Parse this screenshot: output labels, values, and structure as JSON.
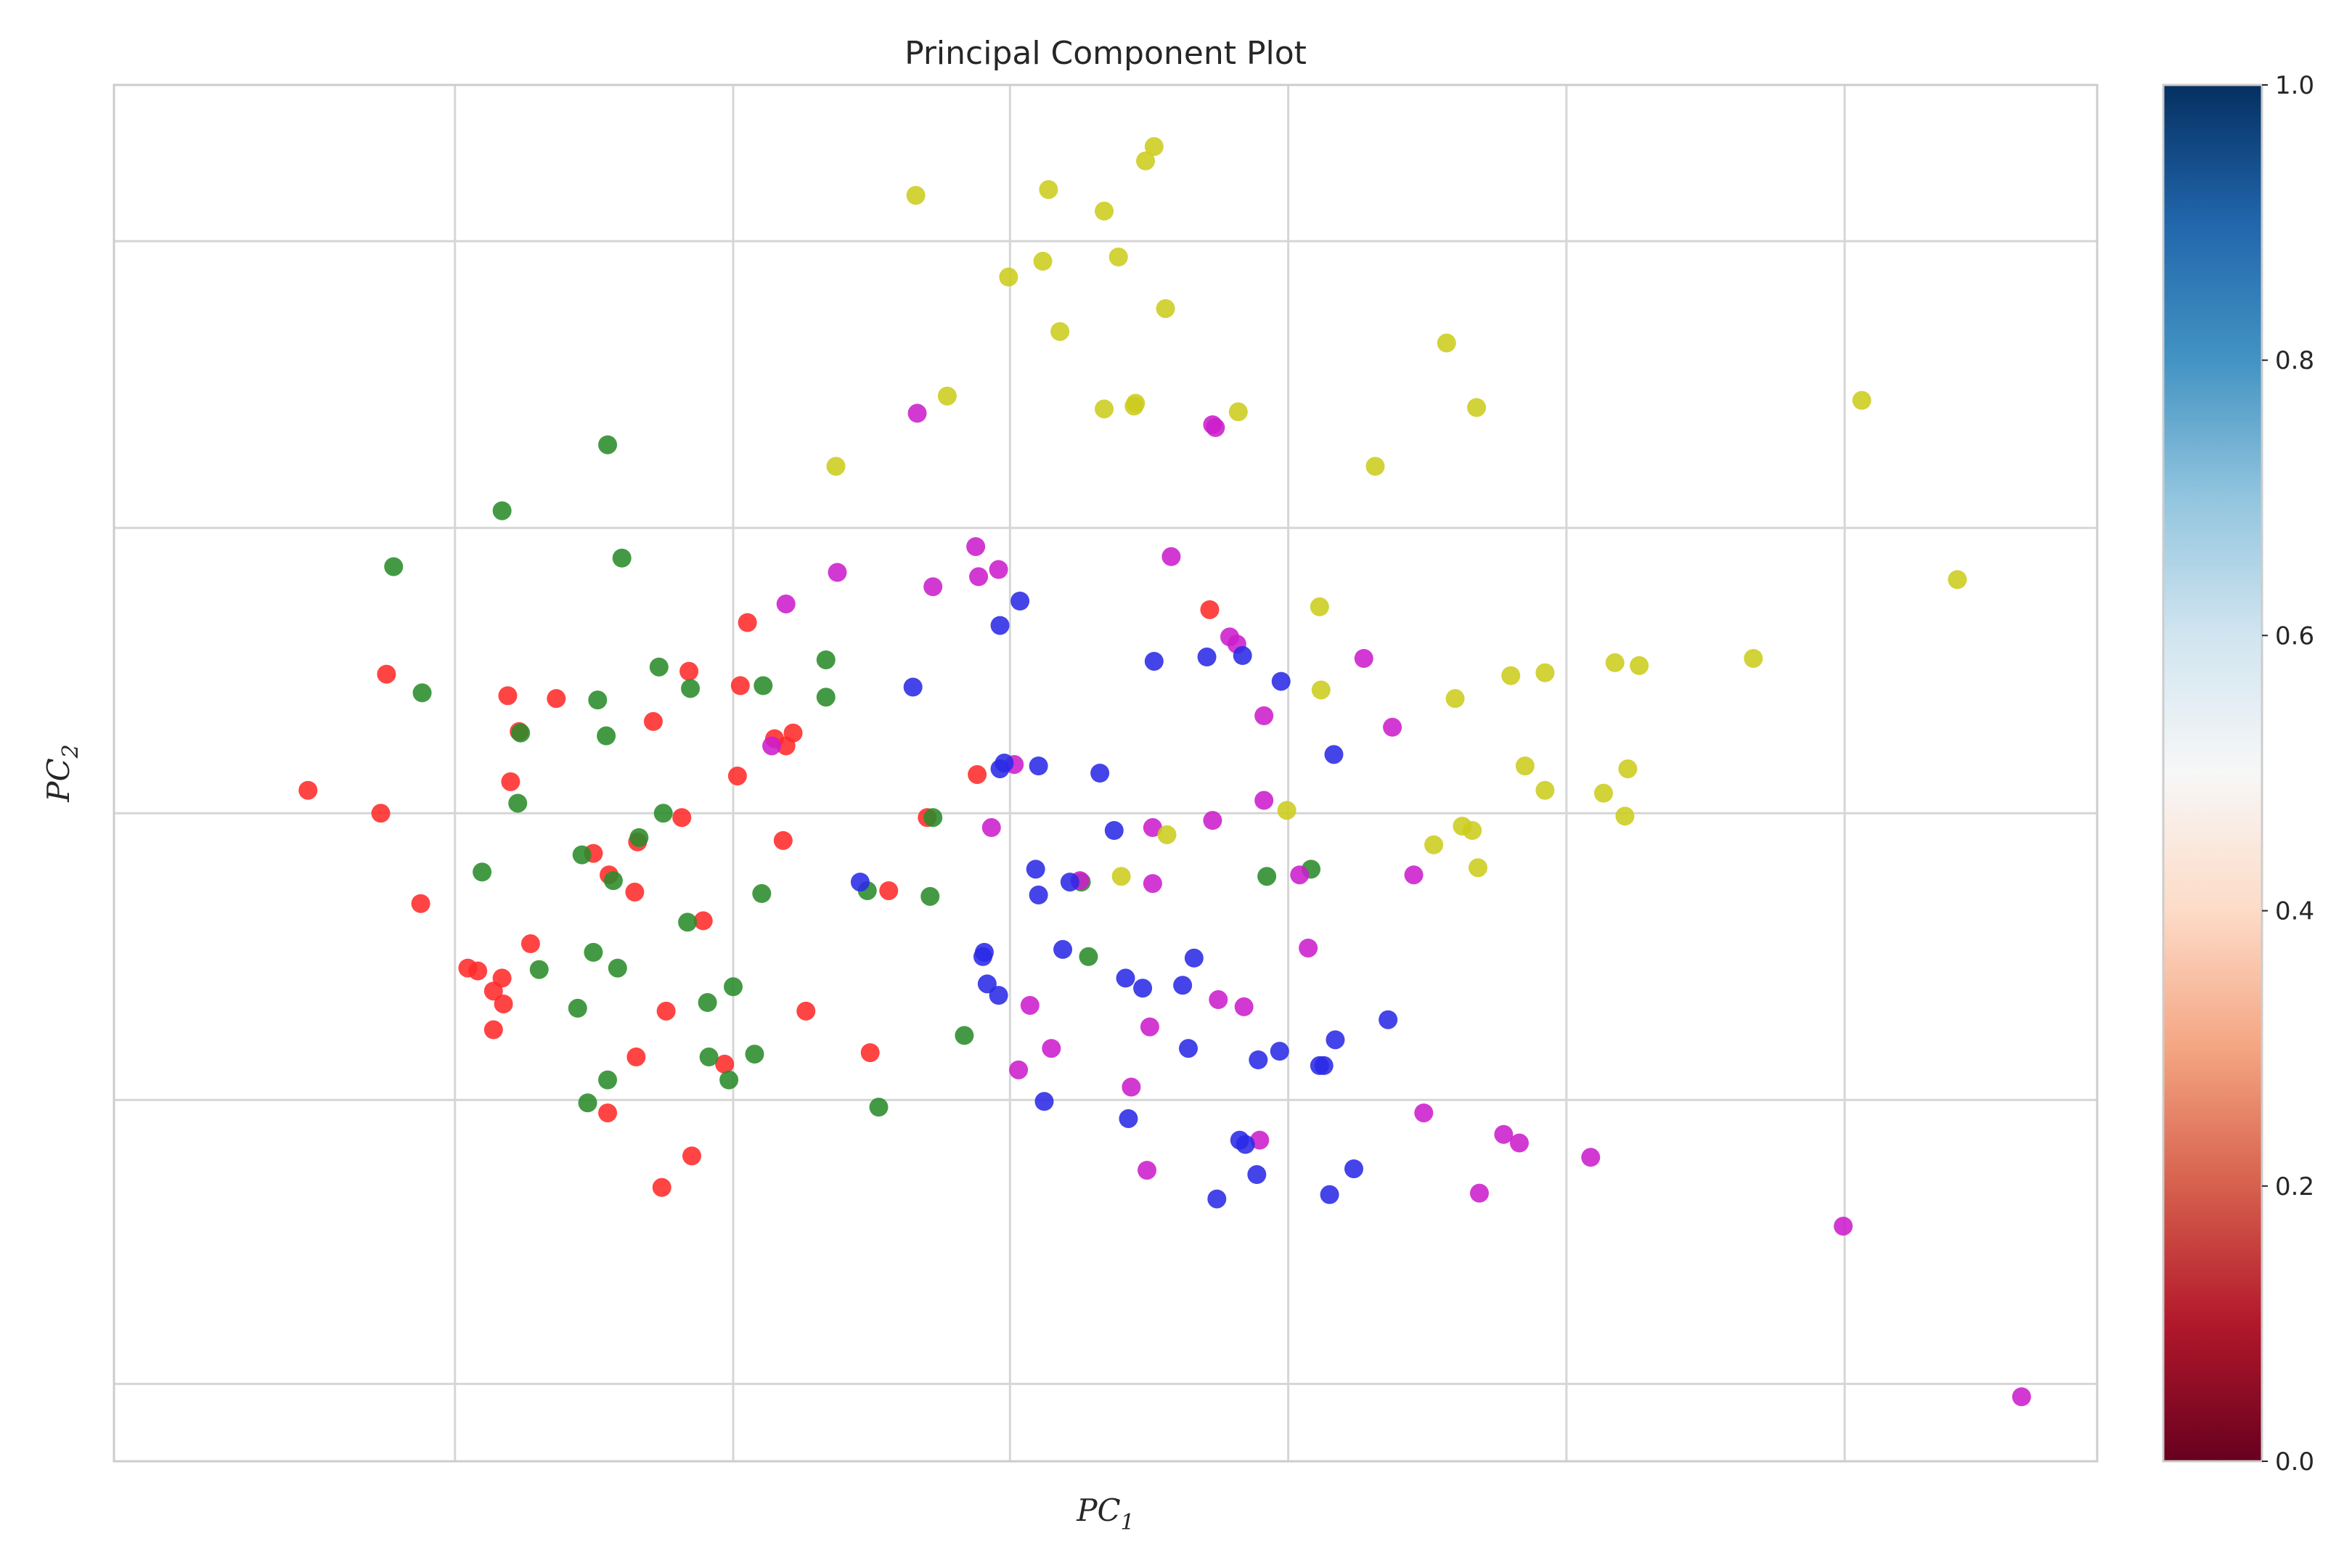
{
  "chart_data": {
    "type": "scatter",
    "title": "Principal Component Plot",
    "xlabel": "PC",
    "xlabel_sub": "1",
    "ylabel": "PC",
    "ylabel_sub": "2",
    "xlim": [
      0,
      1390
    ],
    "ylim": [
      0,
      960
    ],
    "grid": true,
    "x_ticks": [
      239,
      434,
      628,
      823,
      1018,
      1213
    ],
    "y_ticks": [
      54,
      252,
      452,
      651,
      851
    ],
    "colorbar": {
      "cmap": "RdBu",
      "range": [
        0,
        1
      ],
      "ticks": [
        "0.0",
        "0.2",
        "0.4",
        "0.6",
        "0.8",
        "1.0"
      ],
      "tick_values": [
        0,
        0.2,
        0.4,
        0.6,
        0.8,
        1.0
      ],
      "stops": [
        "#67001f",
        "#b2182b",
        "#d6604d",
        "#f4a582",
        "#fddbc7",
        "#f7f7f7",
        "#d1e5f0",
        "#92c5de",
        "#4393c3",
        "#2166ac",
        "#053061"
      ]
    },
    "series": [
      {
        "color": "#ff2a2a",
        "points": [
          [
            136,
            468
          ],
          [
            187,
            452
          ],
          [
            191,
            549
          ],
          [
            215,
            389
          ],
          [
            248,
            344
          ],
          [
            255,
            342
          ],
          [
            266,
            328
          ],
          [
            266,
            301
          ],
          [
            272,
            337
          ],
          [
            273,
            319
          ],
          [
            276,
            534
          ],
          [
            278,
            474
          ],
          [
            284,
            509
          ],
          [
            292,
            361
          ],
          [
            310,
            532
          ],
          [
            336,
            424
          ],
          [
            346,
            243
          ],
          [
            347,
            409
          ],
          [
            365,
            397
          ],
          [
            366,
            282
          ],
          [
            367,
            432
          ],
          [
            378,
            516
          ],
          [
            384,
            191
          ],
          [
            387,
            314
          ],
          [
            398,
            449
          ],
          [
            403,
            551
          ],
          [
            405,
            213
          ],
          [
            413,
            377
          ],
          [
            428,
            277
          ],
          [
            437,
            478
          ],
          [
            439,
            541
          ],
          [
            444,
            585
          ],
          [
            463,
            504
          ],
          [
            469,
            433
          ],
          [
            471,
            499
          ],
          [
            476,
            508
          ],
          [
            485,
            314
          ],
          [
            530,
            285
          ],
          [
            543,
            398
          ],
          [
            570,
            449
          ],
          [
            605,
            479
          ],
          [
            768,
            594
          ]
        ]
      },
      {
        "color": "#2a8c2a",
        "points": [
          [
            196,
            624
          ],
          [
            216,
            536
          ],
          [
            258,
            411
          ],
          [
            272,
            663
          ],
          [
            283,
            459
          ],
          [
            285,
            508
          ],
          [
            298,
            343
          ],
          [
            325,
            316
          ],
          [
            328,
            423
          ],
          [
            332,
            250
          ],
          [
            336,
            355
          ],
          [
            339,
            531
          ],
          [
            345,
            506
          ],
          [
            346,
            266
          ],
          [
            346,
            709
          ],
          [
            350,
            405
          ],
          [
            353,
            344
          ],
          [
            356,
            630
          ],
          [
            368,
            435
          ],
          [
            382,
            554
          ],
          [
            385,
            452
          ],
          [
            402,
            376
          ],
          [
            404,
            539
          ],
          [
            416,
            320
          ],
          [
            417,
            282
          ],
          [
            431,
            266
          ],
          [
            434,
            331
          ],
          [
            449,
            284
          ],
          [
            454,
            396
          ],
          [
            455,
            541
          ],
          [
            499,
            559
          ],
          [
            499,
            533
          ],
          [
            528,
            398
          ],
          [
            536,
            247
          ],
          [
            572,
            394
          ],
          [
            574,
            449
          ],
          [
            596,
            297
          ],
          [
            678,
            404
          ],
          [
            683,
            352
          ],
          [
            808,
            408
          ],
          [
            839,
            413
          ]
        ]
      },
      {
        "color": "#cc1ecc",
        "points": [
          [
            461,
            499
          ],
          [
            471,
            598
          ],
          [
            507,
            620
          ],
          [
            563,
            731
          ],
          [
            574,
            610
          ],
          [
            604,
            638
          ],
          [
            606,
            617
          ],
          [
            615,
            442
          ],
          [
            620,
            622
          ],
          [
            631,
            486
          ],
          [
            634,
            273
          ],
          [
            642,
            318
          ],
          [
            657,
            288
          ],
          [
            677,
            405
          ],
          [
            713,
            261
          ],
          [
            724,
            203
          ],
          [
            726,
            303
          ],
          [
            728,
            442
          ],
          [
            728,
            403
          ],
          [
            741,
            631
          ],
          [
            770,
            447
          ],
          [
            770,
            723
          ],
          [
            772,
            721
          ],
          [
            774,
            322
          ],
          [
            782,
            575
          ],
          [
            787,
            570
          ],
          [
            792,
            317
          ],
          [
            803,
            224
          ],
          [
            806,
            520
          ],
          [
            806,
            461
          ],
          [
            831,
            409
          ],
          [
            837,
            358
          ],
          [
            876,
            560
          ],
          [
            896,
            512
          ],
          [
            911,
            409
          ],
          [
            918,
            243
          ],
          [
            957,
            187
          ],
          [
            974,
            228
          ],
          [
            985,
            222
          ],
          [
            1035,
            212
          ],
          [
            1212,
            164
          ],
          [
            1337,
            45
          ]
        ]
      },
      {
        "color": "#2a2ae6",
        "points": [
          [
            523,
            404
          ],
          [
            560,
            540
          ],
          [
            609,
            352
          ],
          [
            610,
            355
          ],
          [
            612,
            333
          ],
          [
            620,
            325
          ],
          [
            621,
            583
          ],
          [
            621,
            483
          ],
          [
            624,
            487
          ],
          [
            635,
            600
          ],
          [
            646,
            413
          ],
          [
            648,
            395
          ],
          [
            648,
            485
          ],
          [
            652,
            251
          ],
          [
            665,
            357
          ],
          [
            670,
            404
          ],
          [
            691,
            480
          ],
          [
            701,
            440
          ],
          [
            709,
            337
          ],
          [
            711,
            239
          ],
          [
            721,
            330
          ],
          [
            729,
            558
          ],
          [
            749,
            332
          ],
          [
            753,
            288
          ],
          [
            757,
            351
          ],
          [
            766,
            561
          ],
          [
            773,
            183
          ],
          [
            789,
            224
          ],
          [
            791,
            562
          ],
          [
            793,
            221
          ],
          [
            801,
            200
          ],
          [
            802,
            280
          ],
          [
            817,
            286
          ],
          [
            818,
            544
          ],
          [
            845,
            276
          ],
          [
            848,
            276
          ],
          [
            852,
            186
          ],
          [
            855,
            493
          ],
          [
            856,
            294
          ],
          [
            869,
            204
          ],
          [
            893,
            308
          ]
        ]
      },
      {
        "color": "#cccc1e",
        "points": [
          [
            506,
            694
          ],
          [
            562,
            883
          ],
          [
            584,
            743
          ],
          [
            627,
            826
          ],
          [
            651,
            837
          ],
          [
            655,
            887
          ],
          [
            663,
            788
          ],
          [
            694,
            734
          ],
          [
            694,
            872
          ],
          [
            704,
            840
          ],
          [
            706,
            408
          ],
          [
            715,
            736
          ],
          [
            716,
            738
          ],
          [
            723,
            907
          ],
          [
            729,
            917
          ],
          [
            737,
            804
          ],
          [
            738,
            437
          ],
          [
            788,
            732
          ],
          [
            822,
            454
          ],
          [
            845,
            596
          ],
          [
            846,
            538
          ],
          [
            884,
            694
          ],
          [
            925,
            430
          ],
          [
            934,
            780
          ],
          [
            940,
            532
          ],
          [
            945,
            443
          ],
          [
            952,
            440
          ],
          [
            955,
            735
          ],
          [
            956,
            414
          ],
          [
            979,
            548
          ],
          [
            989,
            485
          ],
          [
            1003,
            550
          ],
          [
            1003,
            468
          ],
          [
            1044,
            466
          ],
          [
            1052,
            557
          ],
          [
            1059,
            450
          ],
          [
            1061,
            483
          ],
          [
            1069,
            555
          ],
          [
            1149,
            560
          ],
          [
            1225,
            740
          ],
          [
            1292,
            615
          ]
        ]
      }
    ]
  }
}
